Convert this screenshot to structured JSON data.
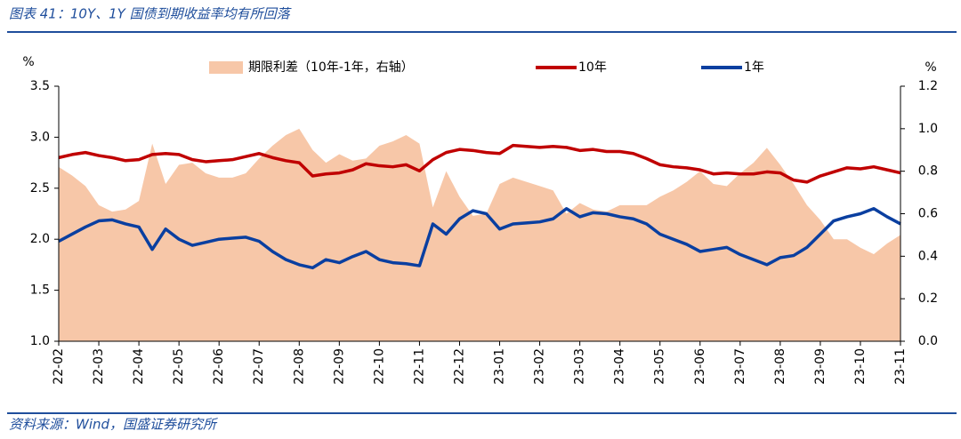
{
  "title": "图表 41：10Y、1Y 国债到期收益率均有所回落",
  "source": "资料来源：Wind，国盛证券研究所",
  "chart_data": {
    "type": "line",
    "categories": [
      "22-02",
      null,
      null,
      "22-03",
      null,
      null,
      "22-04",
      null,
      null,
      "22-05",
      null,
      null,
      "22-06",
      null,
      null,
      "22-07",
      null,
      null,
      "22-08",
      null,
      null,
      "22-09",
      null,
      null,
      "22-10",
      null,
      null,
      "22-11",
      null,
      null,
      "22-12",
      null,
      null,
      "23-01",
      null,
      null,
      "23-02",
      null,
      null,
      "23-03",
      null,
      null,
      "23-04",
      null,
      null,
      "23-05",
      null,
      null,
      "23-06",
      null,
      null,
      "23-07",
      null,
      null,
      "23-08",
      null,
      null,
      "23-09",
      null,
      null,
      "23-10",
      null,
      null,
      "23-11"
    ],
    "series": [
      {
        "name": "期限利差（10年-1年，右轴）",
        "type": "area",
        "axis": "y2",
        "color": "#f7c7a8",
        "values": [
          0.82,
          0.78,
          0.73,
          0.64,
          0.61,
          0.62,
          0.66,
          0.93,
          0.74,
          0.83,
          0.84,
          0.79,
          0.77,
          0.77,
          0.79,
          0.86,
          0.92,
          0.97,
          1.0,
          0.9,
          0.84,
          0.88,
          0.85,
          0.86,
          0.92,
          0.94,
          0.97,
          0.93,
          0.63,
          0.8,
          0.68,
          0.59,
          0.6,
          0.74,
          0.77,
          0.75,
          0.73,
          0.71,
          0.6,
          0.65,
          0.62,
          0.61,
          0.64,
          0.64,
          0.64,
          0.68,
          0.71,
          0.75,
          0.8,
          0.74,
          0.73,
          0.79,
          0.84,
          0.91,
          0.83,
          0.74,
          0.64,
          0.57,
          0.48,
          0.48,
          0.44,
          0.41,
          0.46,
          0.5
        ]
      },
      {
        "name": "10年",
        "type": "line",
        "color": "#c00000",
        "values": [
          2.8,
          2.83,
          2.85,
          2.82,
          2.8,
          2.77,
          2.78,
          2.83,
          2.84,
          2.83,
          2.78,
          2.76,
          2.77,
          2.78,
          2.81,
          2.84,
          2.8,
          2.77,
          2.75,
          2.62,
          2.64,
          2.65,
          2.68,
          2.74,
          2.72,
          2.71,
          2.73,
          2.67,
          2.78,
          2.85,
          2.88,
          2.87,
          2.85,
          2.84,
          2.92,
          2.91,
          2.9,
          2.91,
          2.9,
          2.87,
          2.88,
          2.86,
          2.86,
          2.84,
          2.79,
          2.73,
          2.71,
          2.7,
          2.68,
          2.64,
          2.65,
          2.64,
          2.64,
          2.66,
          2.65,
          2.58,
          2.56,
          2.62,
          2.66,
          2.7,
          2.69,
          2.71,
          2.68,
          2.65
        ]
      },
      {
        "name": "1年",
        "type": "line",
        "color": "#0a3fa0",
        "values": [
          1.98,
          2.05,
          2.12,
          2.18,
          2.19,
          2.15,
          2.12,
          1.9,
          2.1,
          2.0,
          1.94,
          1.97,
          2.0,
          2.01,
          2.02,
          1.98,
          1.88,
          1.8,
          1.75,
          1.72,
          1.8,
          1.77,
          1.83,
          1.88,
          1.8,
          1.77,
          1.76,
          1.74,
          2.15,
          2.05,
          2.2,
          2.28,
          2.25,
          2.1,
          2.15,
          2.16,
          2.17,
          2.2,
          2.3,
          2.22,
          2.26,
          2.25,
          2.22,
          2.2,
          2.15,
          2.05,
          2.0,
          1.95,
          1.88,
          1.9,
          1.92,
          1.85,
          1.8,
          1.75,
          1.82,
          1.84,
          1.92,
          2.05,
          2.18,
          2.22,
          2.25,
          2.3,
          2.22,
          2.15
        ]
      }
    ],
    "y_label": "%",
    "y2_label": "%",
    "ylim": [
      1,
      3.5
    ],
    "yticks": [
      {
        "value": 1,
        "label": "1.0"
      },
      1.5,
      {
        "value": 2,
        "label": "2.0"
      },
      2.5,
      {
        "value": 3,
        "label": "3.0"
      },
      3.5
    ],
    "y2lim": [
      0,
      1.2
    ],
    "y2ticks": [
      {
        "value": 0,
        "label": "0.0"
      },
      0.2,
      0.4,
      0.6,
      0.8,
      {
        "value": 1,
        "label": "1.0"
      },
      1.2
    ]
  }
}
